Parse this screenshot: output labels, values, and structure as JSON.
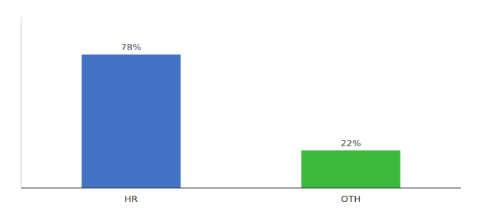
{
  "chart_data": {
    "type": "bar",
    "categories": [
      "HR",
      "OTH"
    ],
    "values": [
      78,
      22
    ],
    "value_labels": [
      "78%",
      "22%"
    ],
    "colors": [
      "#4472C4",
      "#3CB93C"
    ],
    "ylim": [
      0,
      100
    ],
    "data_labels": true,
    "tick_labels": "x"
  }
}
